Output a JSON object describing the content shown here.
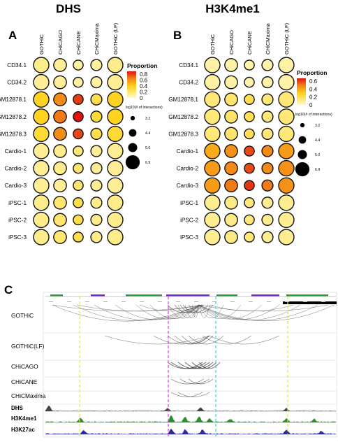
{
  "headers": {
    "left": "DHS",
    "right": "H3K4me1"
  },
  "panels": {
    "A": {
      "label": "A",
      "columns": [
        "GOTHiC",
        "CHiCAGO",
        "CHiCANE",
        "CHiCMaxima",
        "GOTHiC (LF)"
      ],
      "rows": [
        "CD34.1",
        "CD34.2",
        "GM12878.1",
        "GM12878.2",
        "GM12878.3",
        "Cardio-1",
        "Cardio-2",
        "Cardio-3",
        "iPSC-1",
        "iPSC-2",
        "iPSC-3"
      ],
      "proportion": [
        [
          0.12,
          0.1,
          0.08,
          0.08,
          0.12
        ],
        [
          0.1,
          0.09,
          0.07,
          0.07,
          0.1
        ],
        [
          0.35,
          0.55,
          0.72,
          0.25,
          0.35
        ],
        [
          0.35,
          0.6,
          0.8,
          0.3,
          0.35
        ],
        [
          0.3,
          0.55,
          0.7,
          0.25,
          0.3
        ],
        [
          0.1,
          0.12,
          0.15,
          0.1,
          0.1
        ],
        [
          0.1,
          0.12,
          0.18,
          0.1,
          0.1
        ],
        [
          0.1,
          0.1,
          0.18,
          0.1,
          0.1
        ],
        [
          0.12,
          0.18,
          0.25,
          0.12,
          0.12
        ],
        [
          0.12,
          0.18,
          0.25,
          0.12,
          0.12
        ],
        [
          0.12,
          0.18,
          0.25,
          0.12,
          0.12
        ]
      ],
      "log10_interactions": [
        [
          6.9,
          6.0,
          5.0,
          5.4,
          6.9
        ],
        [
          6.9,
          6.0,
          5.0,
          5.4,
          6.9
        ],
        [
          6.9,
          6.0,
          5.0,
          5.4,
          6.9
        ],
        [
          6.9,
          6.0,
          5.0,
          5.4,
          6.9
        ],
        [
          6.9,
          6.0,
          5.0,
          5.4,
          6.9
        ],
        [
          6.9,
          6.0,
          5.0,
          5.4,
          6.9
        ],
        [
          6.9,
          6.0,
          5.0,
          5.4,
          6.9
        ],
        [
          6.9,
          6.0,
          5.0,
          5.4,
          6.9
        ],
        [
          6.9,
          6.0,
          5.0,
          5.4,
          6.9
        ],
        [
          6.9,
          6.0,
          5.0,
          5.4,
          6.9
        ],
        [
          6.9,
          6.0,
          5.0,
          5.4,
          6.9
        ]
      ],
      "legend": {
        "color_title": "Proportion",
        "color_ticks": [
          "0.8",
          "0.6",
          "0.4",
          "0.2",
          "0"
        ],
        "color_max": 0.8,
        "size_title": "log10(# of interactions)",
        "size_ticks": [
          "3.2",
          "4.4",
          "5.0",
          "6.9"
        ]
      }
    },
    "B": {
      "label": "B",
      "columns": [
        "GOTHiC",
        "CHiCAGO",
        "CHiCANE",
        "CHiCMaxima",
        "GOTHiC (LF)"
      ],
      "rows": [
        "CD34.1",
        "CD34.2",
        "GM12878.1",
        "GM12878.2",
        "GM12878.3",
        "Cardio-1",
        "Cardio-2",
        "Cardio-3",
        "iPSC-1",
        "iPSC-2",
        "iPSC-3"
      ],
      "proportion": [
        [
          0.05,
          0.05,
          0.04,
          0.04,
          0.05
        ],
        [
          0.05,
          0.05,
          0.04,
          0.04,
          0.05
        ],
        [
          0.12,
          0.14,
          0.18,
          0.12,
          0.12
        ],
        [
          0.12,
          0.15,
          0.18,
          0.12,
          0.12
        ],
        [
          0.12,
          0.14,
          0.18,
          0.12,
          0.12
        ],
        [
          0.35,
          0.4,
          0.52,
          0.42,
          0.38
        ],
        [
          0.38,
          0.42,
          0.52,
          0.42,
          0.4
        ],
        [
          0.38,
          0.45,
          0.55,
          0.45,
          0.4
        ],
        [
          0.08,
          0.1,
          0.12,
          0.08,
          0.08
        ],
        [
          0.08,
          0.1,
          0.12,
          0.08,
          0.08
        ],
        [
          0.08,
          0.1,
          0.12,
          0.08,
          0.08
        ]
      ],
      "log10_interactions": [
        [
          6.9,
          6.0,
          5.0,
          5.4,
          6.9
        ],
        [
          6.9,
          6.0,
          5.0,
          5.4,
          6.9
        ],
        [
          6.9,
          6.0,
          5.0,
          5.4,
          6.9
        ],
        [
          6.9,
          6.0,
          5.0,
          5.4,
          6.9
        ],
        [
          6.9,
          6.0,
          5.0,
          5.4,
          6.9
        ],
        [
          6.9,
          6.0,
          5.0,
          5.4,
          6.9
        ],
        [
          6.9,
          6.0,
          5.0,
          5.4,
          6.9
        ],
        [
          6.9,
          6.0,
          5.0,
          5.4,
          6.9
        ],
        [
          6.9,
          6.0,
          5.0,
          5.4,
          6.9
        ],
        [
          6.9,
          6.0,
          5.0,
          5.4,
          6.9
        ],
        [
          6.9,
          6.0,
          5.0,
          5.4,
          6.9
        ]
      ],
      "legend": {
        "color_title": "Proportion",
        "color_ticks": [
          "0.6",
          "0.4",
          "0.2",
          "0"
        ],
        "color_max": 0.6,
        "size_title": "log10(# of interactions)",
        "size_ticks": [
          "3.2",
          "4.4",
          "5.0",
          "6.9"
        ]
      }
    },
    "C": {
      "label": "C",
      "tracks": [
        "GOTHiC",
        "GOTHiC(LF)",
        "CHiCAGO",
        "CHiCANE",
        "CHiCMaxima"
      ],
      "signal_tracks": [
        "DHS",
        "H3K4me1",
        "H3K27ac"
      ],
      "guide_colors": [
        "#e8e830",
        "#d93bd9",
        "#3bd0e0",
        "#e8e830"
      ],
      "signal_colors": [
        "#444444",
        "#2e8b2e",
        "#2b2b9e"
      ]
    }
  },
  "colors": {
    "low": "#fff9c4",
    "mid": "#ffd21a",
    "high": "#e0120d",
    "stroke": "#111111"
  }
}
